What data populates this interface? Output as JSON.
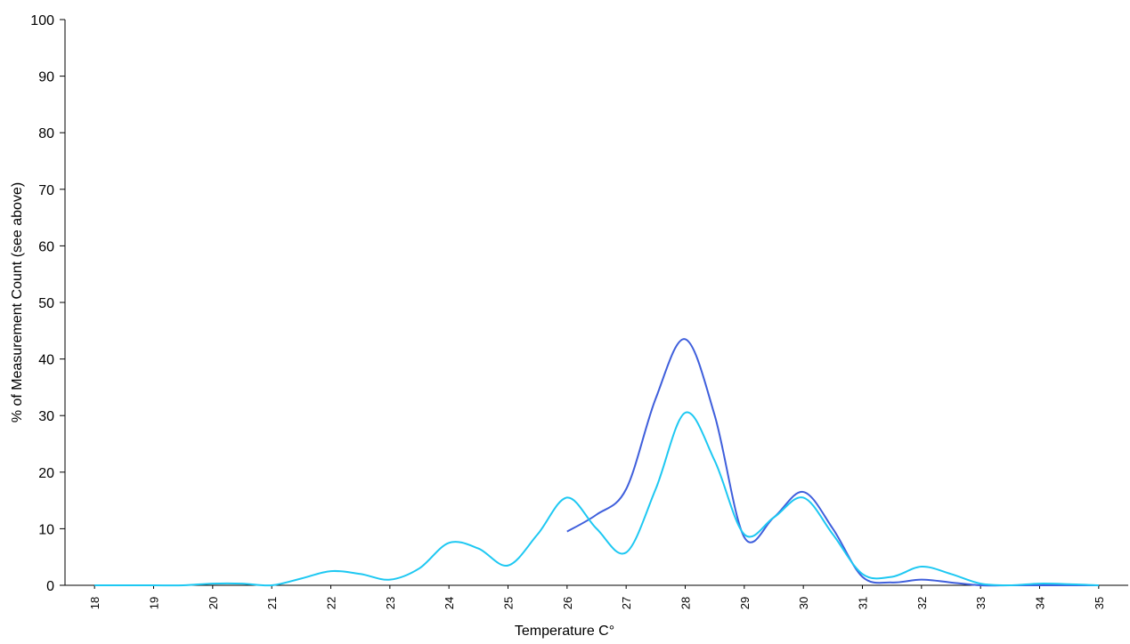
{
  "chart_data": {
    "type": "line",
    "x_label": "Temperature C°",
    "y_label": "% of Measurement Count (see above)",
    "x": [
      18,
      18.5,
      19,
      19.5,
      20,
      20.5,
      21,
      21.5,
      22,
      22.5,
      23,
      23.5,
      24,
      24.5,
      25,
      25.5,
      26,
      26.5,
      27,
      27.5,
      28,
      28.5,
      29,
      29.5,
      30,
      30.5,
      31,
      31.5,
      32,
      32.5,
      33,
      33.5,
      34,
      34.5,
      35
    ],
    "series": [
      {
        "color": "#3f5fdc",
        "values": [
          null,
          null,
          null,
          null,
          null,
          null,
          null,
          null,
          null,
          null,
          null,
          null,
          null,
          null,
          null,
          null,
          9.5,
          12.5,
          17,
          33,
          43.5,
          30,
          8.5,
          12,
          16.5,
          10,
          1.5,
          0.5,
          1,
          0.5,
          0,
          0,
          0,
          0,
          0
        ]
      },
      {
        "color": "#1ec8f2",
        "values": [
          0,
          0,
          0,
          0,
          0.3,
          0.3,
          0,
          1.2,
          2.5,
          2,
          1,
          3,
          7.5,
          6.5,
          3.5,
          9,
          15.5,
          10,
          5.8,
          17,
          30.5,
          22,
          9,
          12,
          15.5,
          9,
          2,
          1.5,
          3.3,
          2,
          0.3,
          0,
          0.3,
          0.2,
          0
        ]
      }
    ],
    "xlim": [
      17.5,
      35.5
    ],
    "xticks": [
      18,
      19,
      20,
      21,
      22,
      23,
      24,
      25,
      26,
      27,
      28,
      29,
      30,
      31,
      32,
      33,
      34,
      35
    ],
    "ylim": [
      0,
      100
    ],
    "yticks": [
      0,
      10,
      20,
      30,
      40,
      50,
      60,
      70,
      80,
      90,
      100
    ]
  }
}
